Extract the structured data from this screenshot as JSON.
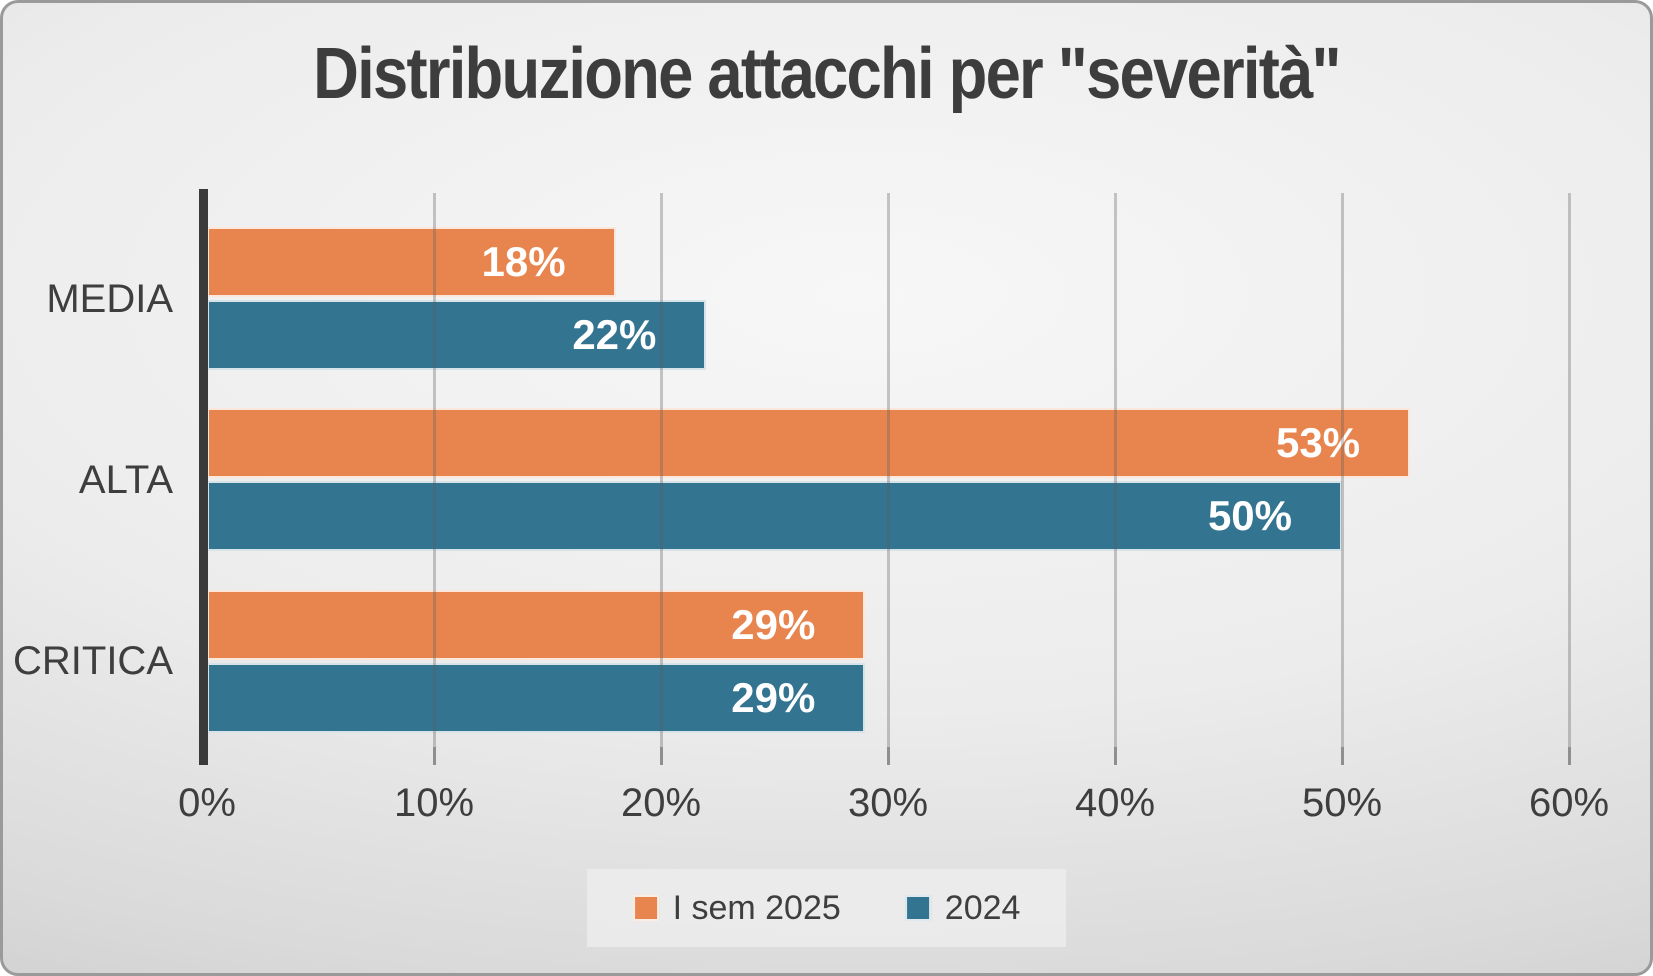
{
  "chart_data": {
    "type": "bar",
    "orientation": "horizontal",
    "title": "Distribuzione attacchi per \"severità\"",
    "categories": [
      "MEDIA",
      "ALTA",
      "CRITICA"
    ],
    "series": [
      {
        "name": "I sem 2025",
        "color": "#E8854E",
        "values": [
          18,
          53,
          29
        ],
        "value_labels": [
          "18%",
          "53%",
          "29%"
        ]
      },
      {
        "name": "2024",
        "color": "#337490",
        "values": [
          22,
          50,
          29
        ],
        "value_labels": [
          "22%",
          "50%",
          "29%"
        ]
      }
    ],
    "xlim": [
      0,
      60
    ],
    "x_ticks": [
      "0%",
      "10%",
      "20%",
      "30%",
      "40%",
      "50%",
      "60%"
    ],
    "grid": true,
    "legend_position": "bottom",
    "value_label_color": "#ffffff",
    "title_color": "#3d3d3d",
    "axis_color": "#3a3a3a"
  }
}
